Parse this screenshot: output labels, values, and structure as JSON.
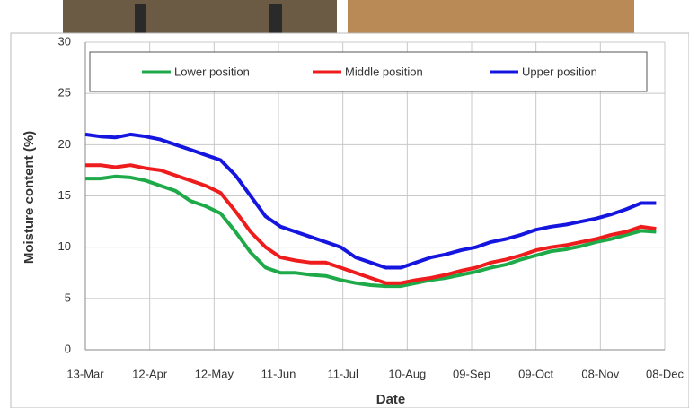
{
  "chart_data": {
    "type": "line",
    "x_label": "Date",
    "y_label": "Moisture content (%)",
    "x": [
      0,
      7,
      14,
      21,
      28,
      35,
      42,
      49,
      56,
      63,
      70,
      77,
      84,
      91,
      98,
      105,
      112,
      119,
      126,
      133,
      140,
      147,
      154,
      161,
      168,
      175,
      182,
      189,
      196,
      203,
      210,
      217,
      224,
      231,
      238,
      245,
      252,
      259,
      266
    ],
    "series": [
      {
        "name": "Lower position",
        "color": "#1faa4a",
        "values": [
          16.7,
          16.7,
          16.9,
          16.8,
          16.5,
          16,
          15.5,
          14.5,
          14,
          13.3,
          11.5,
          9.5,
          8,
          7.5,
          7.5,
          7.3,
          7.2,
          6.8,
          6.5,
          6.3,
          6.2,
          6.2,
          6.5,
          6.8,
          7,
          7.3,
          7.6,
          8,
          8.3,
          8.8,
          9.2,
          9.6,
          9.8,
          10.1,
          10.5,
          10.8,
          11.2,
          11.6,
          11.5
        ]
      },
      {
        "name": "Middle position",
        "color": "#ee1c1c",
        "values": [
          18,
          18,
          17.8,
          18,
          17.7,
          17.5,
          17,
          16.5,
          16,
          15.3,
          13.5,
          11.5,
          10,
          9,
          8.7,
          8.5,
          8.5,
          8,
          7.5,
          7,
          6.5,
          6.5,
          6.8,
          7,
          7.3,
          7.7,
          8,
          8.5,
          8.8,
          9.2,
          9.7,
          10,
          10.2,
          10.5,
          10.8,
          11.2,
          11.5,
          12,
          11.8
        ]
      },
      {
        "name": "Upper position",
        "color": "#1515e0",
        "values": [
          21,
          20.8,
          20.7,
          21,
          20.8,
          20.5,
          20,
          19.5,
          19,
          18.5,
          17,
          15,
          13,
          12,
          11.5,
          11,
          10.5,
          10,
          9,
          8.5,
          8,
          8,
          8.5,
          9,
          9.3,
          9.7,
          10,
          10.5,
          10.8,
          11.2,
          11.7,
          12,
          12.2,
          12.5,
          12.8,
          13.2,
          13.7,
          14.3,
          14.3
        ]
      }
    ],
    "xlim": [
      0,
      270
    ],
    "xticks": [
      {
        "value": 0,
        "label": "13-Mar"
      },
      {
        "value": 30,
        "label": "12-Apr"
      },
      {
        "value": 60,
        "label": "12-May"
      },
      {
        "value": 90,
        "label": "11-Jun"
      },
      {
        "value": 120,
        "label": "11-Jul"
      },
      {
        "value": 150,
        "label": "10-Aug"
      },
      {
        "value": 180,
        "label": "09-Sep"
      },
      {
        "value": 210,
        "label": "09-Oct"
      },
      {
        "value": 240,
        "label": "08-Nov"
      },
      {
        "value": 270,
        "label": "08-Dec"
      }
    ],
    "ylim": [
      0,
      30
    ],
    "yticks": [
      0,
      5,
      10,
      15,
      20,
      25,
      30
    ],
    "grid": true,
    "legend": "top"
  }
}
